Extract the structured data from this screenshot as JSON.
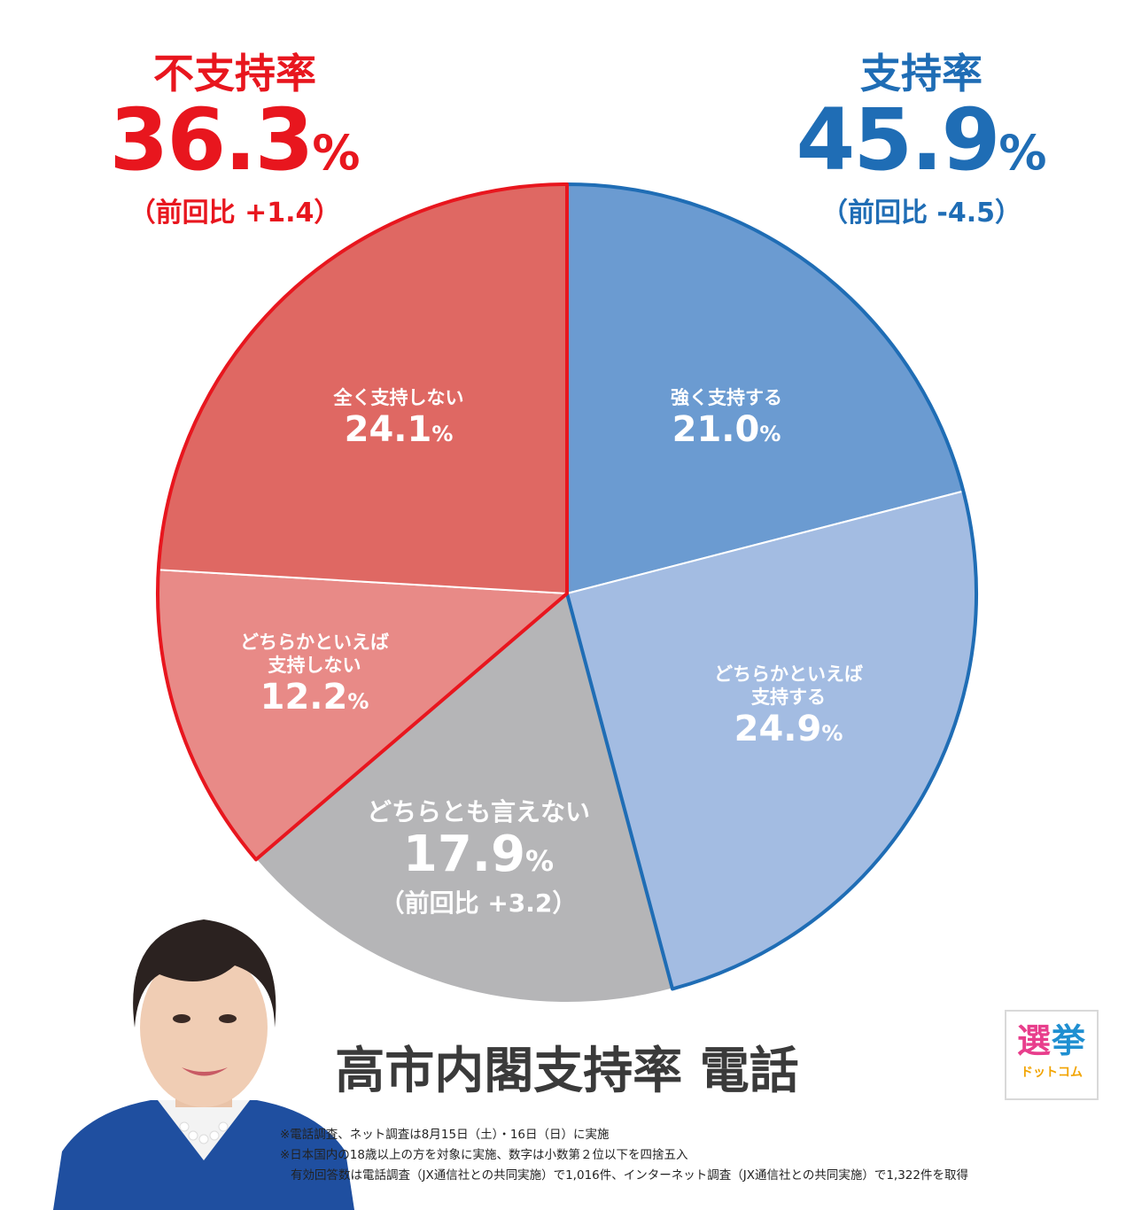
{
  "oppose_summary": {
    "label": "不支持率",
    "value": "36.3",
    "unit": "%",
    "change": "（前回比 +1.4）",
    "color": "#e8161e"
  },
  "support_summary": {
    "label": "支持率",
    "value": "45.9",
    "unit": "%",
    "change": "（前回比 -4.5）",
    "color": "#1f6db5"
  },
  "chart_data": {
    "type": "pie",
    "title": "高市内閣支持率 電話",
    "unit": "%",
    "slices": [
      {
        "label": "強く支持する",
        "value": 21.0,
        "display": "21.0",
        "color": "#6b9bd1"
      },
      {
        "label": "どちらかといえば\n支持する",
        "value": 24.9,
        "display": "24.9",
        "color": "#a3bce2"
      },
      {
        "label": "どちらとも言えない",
        "value": 17.9,
        "display": "17.9",
        "change": "（前回比 +3.2）",
        "color": "#b5b5b7"
      },
      {
        "label": "どちらかといえば\n支持しない",
        "value": 12.2,
        "display": "12.2",
        "color": "#e88a87"
      },
      {
        "label": "全く支持しない",
        "value": 24.1,
        "display": "24.1",
        "color": "#df6863"
      }
    ],
    "groups": [
      {
        "name": "支持率",
        "slices": [
          0,
          1
        ],
        "outline_color": "#1f6db5"
      },
      {
        "name": "不支持率",
        "slices": [
          3,
          4
        ],
        "outline_color": "#e8161e"
      }
    ]
  },
  "logo": {
    "line1a": "選",
    "line1b": "挙",
    "line2": "ドットコム"
  },
  "notes": [
    "※電話調査、ネット調査は8月15日（土）・16日（日）に実施",
    "※日本国内の18歳以上の方を対象に実施、数字は小数第２位以下を四捨五入",
    "有効回答数は電話調査（JX通信社との共同実施）で1,016件、インターネット調査（JX通信社との共同実施）で1,322件を取得"
  ]
}
